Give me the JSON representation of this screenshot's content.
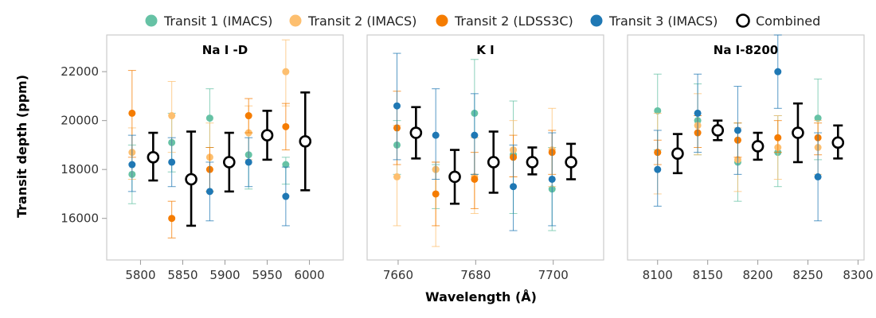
{
  "chart_data": {
    "type": "scatter",
    "ylabel": "Transit depth (ppm)",
    "xlabel": "Wavelength (Å)",
    "ylim": [
      14300,
      23500
    ],
    "yticks": [
      16000,
      18000,
      20000,
      22000
    ],
    "grid": false,
    "legend_position": "top",
    "series_meta": [
      {
        "name": "Transit 1 (IMACS)",
        "color": "#66c2a5",
        "marker": "filled-circle"
      },
      {
        "name": "Transit 2 (IMACS)",
        "color": "#fdbf6f",
        "marker": "filled-circle"
      },
      {
        "name": "Transit 2 (LDSS3C)",
        "color": "#f57c00",
        "marker": "filled-circle"
      },
      {
        "name": "Transit 3 (IMACS)",
        "color": "#1f78b4",
        "marker": "filled-circle"
      },
      {
        "name": "Combined",
        "color": "#000000",
        "marker": "open-circle"
      }
    ],
    "panels": [
      {
        "title": "Na I -D",
        "xlim": [
          5760,
          6040
        ],
        "xticks": [
          5800,
          5850,
          5900,
          5950,
          6000
        ],
        "series": [
          {
            "name": "Transit 1 (IMACS)",
            "points": [
              {
                "x": 5790,
                "y": 17800,
                "lo": 16600,
                "hi": 19000
              },
              {
                "x": 5837,
                "y": 19100,
                "lo": 17900,
                "hi": 20300
              },
              {
                "x": 5882,
                "y": 20100,
                "lo": 18900,
                "hi": 21300
              },
              {
                "x": 5928,
                "y": 18600,
                "lo": 17200,
                "hi": 19500
              },
              {
                "x": 5972,
                "y": 18200,
                "lo": 17400,
                "hi": 18500
              }
            ]
          },
          {
            "name": "Transit 2 (IMACS)",
            "points": [
              {
                "x": 5790,
                "y": 18700,
                "lo": 17600,
                "hi": 19700
              },
              {
                "x": 5837,
                "y": 20200,
                "lo": 18700,
                "hi": 21600
              },
              {
                "x": 5882,
                "y": 18500,
                "lo": 17100,
                "hi": 19900
              },
              {
                "x": 5928,
                "y": 19500,
                "lo": 18400,
                "hi": 20600
              },
              {
                "x": 5972,
                "y": 22000,
                "lo": 20600,
                "hi": 23300
              }
            ]
          },
          {
            "name": "Transit 2 (LDSS3C)",
            "points": [
              {
                "x": 5790,
                "y": 20300,
                "lo": 18500,
                "hi": 22050
              },
              {
                "x": 5837,
                "y": 16000,
                "lo": 15200,
                "hi": 16700
              },
              {
                "x": 5882,
                "y": 18000,
                "lo": 17100,
                "hi": 18900
              },
              {
                "x": 5928,
                "y": 20200,
                "lo": 19500,
                "hi": 20900
              },
              {
                "x": 5972,
                "y": 19750,
                "lo": 18800,
                "hi": 20700
              }
            ]
          },
          {
            "name": "Transit 3 (IMACS)",
            "points": [
              {
                "x": 5790,
                "y": 18200,
                "lo": 17100,
                "hi": 19400
              },
              {
                "x": 5837,
                "y": 18300,
                "lo": 17300,
                "hi": 19300
              },
              {
                "x": 5882,
                "y": 17100,
                "lo": 15900,
                "hi": 18300
              },
              {
                "x": 5928,
                "y": 18300,
                "lo": 17300,
                "hi": 19300
              },
              {
                "x": 5972,
                "y": 16900,
                "lo": 15700,
                "hi": 18100
              }
            ]
          },
          {
            "name": "Combined",
            "points": [
              {
                "x": 5815,
                "y": 18500,
                "lo": 17550,
                "hi": 19500
              },
              {
                "x": 5860,
                "y": 17600,
                "lo": 15700,
                "hi": 19550
              },
              {
                "x": 5905,
                "y": 18300,
                "lo": 17100,
                "hi": 19500
              },
              {
                "x": 5950,
                "y": 19400,
                "lo": 18400,
                "hi": 20400
              },
              {
                "x": 5995,
                "y": 19150,
                "lo": 17150,
                "hi": 21150
              }
            ]
          }
        ]
      },
      {
        "title": "K I",
        "xlim": [
          7652,
          7713
        ],
        "xticks": [
          7660,
          7680,
          7700
        ],
        "series": [
          {
            "name": "Transit 1 (IMACS)",
            "points": [
              {
                "x": 7659.7,
                "y": 19000,
                "lo": 17800,
                "hi": 20000
              },
              {
                "x": 7669.7,
                "y": 18000,
                "lo": 16400,
                "hi": 18200
              },
              {
                "x": 7679.7,
                "y": 20300,
                "lo": 17800,
                "hi": 22500
              },
              {
                "x": 7689.7,
                "y": 18600,
                "lo": 16200,
                "hi": 20800
              },
              {
                "x": 7699.7,
                "y": 17200,
                "lo": 15500,
                "hi": 18900
              }
            ]
          },
          {
            "name": "Transit 2 (IMACS)",
            "points": [
              {
                "x": 7659.7,
                "y": 17700,
                "lo": 15700,
                "hi": 19800
              },
              {
                "x": 7669.7,
                "y": 18000,
                "lo": 14850,
                "hi": 18300
              },
              {
                "x": 7679.7,
                "y": 17700,
                "lo": 16200,
                "hi": 19300
              },
              {
                "x": 7689.7,
                "y": 18800,
                "lo": 17700,
                "hi": 20000
              },
              {
                "x": 7699.7,
                "y": 18800,
                "lo": 17300,
                "hi": 20500
              }
            ]
          },
          {
            "name": "Transit 2 (LDSS3C)",
            "points": [
              {
                "x": 7659.7,
                "y": 19700,
                "lo": 18200,
                "hi": 21200
              },
              {
                "x": 7669.7,
                "y": 17000,
                "lo": 15700,
                "hi": 18300
              },
              {
                "x": 7679.7,
                "y": 17600,
                "lo": 16400,
                "hi": 18700
              },
              {
                "x": 7689.7,
                "y": 18500,
                "lo": 17700,
                "hi": 19400
              },
              {
                "x": 7699.7,
                "y": 18700,
                "lo": 17800,
                "hi": 19600
              }
            ]
          },
          {
            "name": "Transit 3 (IMACS)",
            "points": [
              {
                "x": 7659.7,
                "y": 20600,
                "lo": 18400,
                "hi": 22750
              },
              {
                "x": 7669.7,
                "y": 19400,
                "lo": 17600,
                "hi": 21300
              },
              {
                "x": 7679.7,
                "y": 19400,
                "lo": 17800,
                "hi": 21100
              },
              {
                "x": 7689.7,
                "y": 17300,
                "lo": 15500,
                "hi": 19000
              },
              {
                "x": 7699.7,
                "y": 17600,
                "lo": 15700,
                "hi": 19500
              }
            ]
          },
          {
            "name": "Combined",
            "points": [
              {
                "x": 7664.6,
                "y": 19500,
                "lo": 18450,
                "hi": 20550
              },
              {
                "x": 7674.6,
                "y": 17700,
                "lo": 16600,
                "hi": 18800
              },
              {
                "x": 7684.6,
                "y": 18300,
                "lo": 17050,
                "hi": 19550
              },
              {
                "x": 7694.6,
                "y": 18300,
                "lo": 17800,
                "hi": 18900
              },
              {
                "x": 7704.6,
                "y": 18300,
                "lo": 17600,
                "hi": 19050
              }
            ]
          }
        ]
      },
      {
        "title": "Na I-8200",
        "xlim": [
          8070,
          8306
        ],
        "xticks": [
          8100,
          8150,
          8200,
          8250,
          8300
        ],
        "series": [
          {
            "name": "Transit 1 (IMACS)",
            "points": [
              {
                "x": 8100,
                "y": 20400,
                "lo": 18800,
                "hi": 21900
              },
              {
                "x": 8140,
                "y": 20000,
                "lo": 18600,
                "hi": 21500
              },
              {
                "x": 8180,
                "y": 18300,
                "lo": 16700,
                "hi": 19900
              },
              {
                "x": 8220,
                "y": 18700,
                "lo": 17300,
                "hi": 20200
              },
              {
                "x": 8260,
                "y": 20100,
                "lo": 18400,
                "hi": 21700
              }
            ]
          },
          {
            "name": "Transit 2 (IMACS)",
            "points": [
              {
                "x": 8100,
                "y": 18700,
                "lo": 17000,
                "hi": 20300
              },
              {
                "x": 8140,
                "y": 19800,
                "lo": 18600,
                "hi": 21100
              },
              {
                "x": 8180,
                "y": 18400,
                "lo": 17100,
                "hi": 19700
              },
              {
                "x": 8220,
                "y": 18900,
                "lo": 17600,
                "hi": 20200
              },
              {
                "x": 8260,
                "y": 18900,
                "lo": 17800,
                "hi": 20000
              }
            ]
          },
          {
            "name": "Transit 2 (LDSS3C)",
            "points": [
              {
                "x": 8100,
                "y": 18700,
                "lo": 18200,
                "hi": 19200
              },
              {
                "x": 8140,
                "y": 19500,
                "lo": 18900,
                "hi": 20200
              },
              {
                "x": 8180,
                "y": 19200,
                "lo": 18500,
                "hi": 19900
              },
              {
                "x": 8220,
                "y": 19300,
                "lo": 18700,
                "hi": 20000
              },
              {
                "x": 8260,
                "y": 19300,
                "lo": 18600,
                "hi": 19900
              }
            ]
          },
          {
            "name": "Transit 3 (IMACS)",
            "points": [
              {
                "x": 8100,
                "y": 18000,
                "lo": 16500,
                "hi": 19600
              },
              {
                "x": 8140,
                "y": 20300,
                "lo": 18700,
                "hi": 21900
              },
              {
                "x": 8180,
                "y": 19600,
                "lo": 17800,
                "hi": 21400
              },
              {
                "x": 8220,
                "y": 22000,
                "lo": 20500,
                "hi": 23500
              },
              {
                "x": 8260,
                "y": 17700,
                "lo": 15900,
                "hi": 19500
              }
            ]
          },
          {
            "name": "Combined",
            "points": [
              {
                "x": 8120,
                "y": 18650,
                "lo": 17850,
                "hi": 19450
              },
              {
                "x": 8160,
                "y": 19600,
                "lo": 19200,
                "hi": 20000
              },
              {
                "x": 8200,
                "y": 18950,
                "lo": 18400,
                "hi": 19500
              },
              {
                "x": 8240,
                "y": 19500,
                "lo": 18300,
                "hi": 20700
              },
              {
                "x": 8280,
                "y": 19100,
                "lo": 18450,
                "hi": 19800
              }
            ]
          }
        ]
      }
    ]
  }
}
